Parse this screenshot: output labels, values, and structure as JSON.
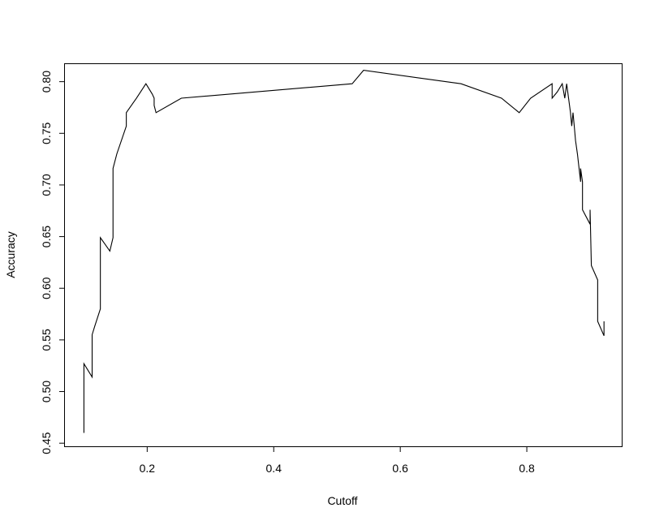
{
  "chart_data": {
    "type": "line",
    "title": "",
    "xlabel": "Cutoff",
    "ylabel": "Accuracy",
    "xlim": [
      0.07,
      0.95
    ],
    "ylim": [
      0.447,
      0.817
    ],
    "xticks": [
      0.2,
      0.4,
      0.6,
      0.8
    ],
    "xtick_labels": [
      "0.2",
      "0.4",
      "0.6",
      "0.8"
    ],
    "yticks": [
      0.45,
      0.5,
      0.55,
      0.6,
      0.65,
      0.7,
      0.75,
      0.8
    ],
    "ytick_labels": [
      "0.45",
      "0.50",
      "0.55",
      "0.60",
      "0.65",
      "0.70",
      "0.75",
      "0.80"
    ],
    "grid": false,
    "legend": "none",
    "color": "#000000",
    "series": [
      {
        "x": [
          0.1,
          0.1,
          0.113,
          0.113,
          0.117,
          0.126,
          0.126,
          0.141,
          0.146,
          0.146,
          0.152,
          0.167,
          0.167,
          0.183,
          0.198,
          0.208,
          0.211,
          0.211,
          0.214,
          0.254,
          0.524,
          0.542,
          0.696,
          0.76,
          0.788,
          0.806,
          0.84,
          0.84,
          0.848,
          0.856,
          0.86,
          0.863,
          0.866,
          0.869,
          0.871,
          0.873,
          0.875,
          0.877,
          0.88,
          0.885,
          0.885,
          0.888,
          0.888,
          0.9,
          0.9,
          0.902,
          0.912,
          0.912,
          0.922,
          0.922
        ],
        "y": [
          0.46,
          0.527,
          0.514,
          0.555,
          0.563,
          0.58,
          0.649,
          0.636,
          0.649,
          0.716,
          0.73,
          0.757,
          0.77,
          0.784,
          0.798,
          0.788,
          0.784,
          0.777,
          0.77,
          0.784,
          0.798,
          0.811,
          0.798,
          0.784,
          0.77,
          0.784,
          0.798,
          0.784,
          0.79,
          0.798,
          0.784,
          0.798,
          0.784,
          0.77,
          0.757,
          0.77,
          0.757,
          0.743,
          0.73,
          0.703,
          0.716,
          0.703,
          0.676,
          0.662,
          0.676,
          0.622,
          0.608,
          0.568,
          0.554,
          0.568
        ]
      }
    ]
  }
}
